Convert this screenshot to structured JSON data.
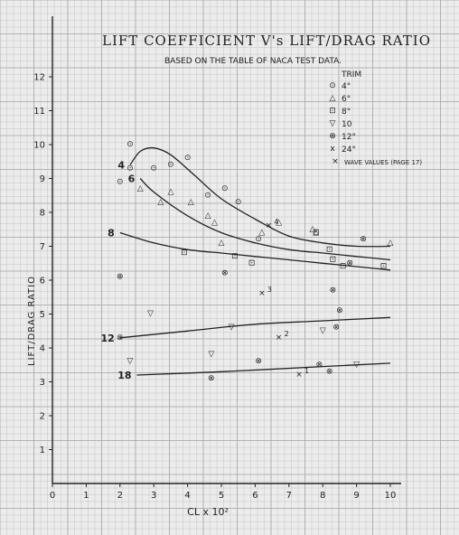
{
  "chart_data": {
    "type": "scatter",
    "title": "LIFT COEFFICIENT V's LIFT/DRAG RATIO",
    "subtitle": "BASED ON THE TABLE OF NACA TEST DATA.",
    "xlabel": "CL x 10²",
    "ylabel": "LIFT/DRAG RATIO",
    "xlim": [
      0,
      10
    ],
    "ylim": [
      0,
      12
    ],
    "x_ticks": [
      "0",
      "1",
      "2",
      "3",
      "4",
      "5",
      "6",
      "7",
      "8",
      "9",
      "10"
    ],
    "y_ticks": [
      "1",
      "2",
      "3",
      "4",
      "5",
      "6",
      "7",
      "8",
      "9",
      "10",
      "11",
      "12"
    ],
    "grid": true,
    "legend": {
      "title": "TRIM",
      "entries": [
        {
          "symbol": "⊙",
          "label": "4°"
        },
        {
          "symbol": "△",
          "label": "6°"
        },
        {
          "symbol": "⊡",
          "label": "8°"
        },
        {
          "symbol": "▽",
          "label": "10"
        },
        {
          "symbol": "⊗",
          "label": "12°"
        },
        {
          "symbol": "x",
          "label": "24°"
        },
        {
          "symbol": "×",
          "label": "WAVE VALUES (PAGE 17)"
        }
      ]
    },
    "series": [
      {
        "name": "4°",
        "symbol": "⊙",
        "points": [
          [
            2.0,
            8.9
          ],
          [
            2.3,
            9.3
          ],
          [
            2.3,
            10.0
          ],
          [
            3.0,
            9.3
          ],
          [
            3.5,
            9.4
          ],
          [
            4.0,
            9.6
          ],
          [
            4.6,
            8.5
          ],
          [
            5.1,
            8.7
          ],
          [
            5.5,
            8.3
          ],
          [
            6.1,
            7.2
          ]
        ]
      },
      {
        "name": "6°",
        "symbol": "△",
        "points": [
          [
            2.6,
            8.7
          ],
          [
            3.2,
            8.3
          ],
          [
            3.5,
            8.6
          ],
          [
            4.1,
            8.3
          ],
          [
            4.6,
            7.9
          ],
          [
            4.8,
            7.7
          ],
          [
            5.0,
            7.1
          ],
          [
            6.2,
            7.4
          ],
          [
            6.7,
            7.7
          ],
          [
            7.7,
            7.5
          ],
          [
            7.8,
            7.4
          ],
          [
            10.0,
            7.1
          ]
        ]
      },
      {
        "name": "8°",
        "symbol": "⊡",
        "points": [
          [
            3.9,
            6.8
          ],
          [
            5.4,
            6.7
          ],
          [
            5.9,
            6.5
          ],
          [
            7.8,
            7.4
          ],
          [
            8.2,
            6.9
          ],
          [
            8.3,
            6.6
          ],
          [
            8.6,
            6.4
          ],
          [
            9.8,
            6.4
          ]
        ]
      },
      {
        "name": "10",
        "symbol": "▽",
        "points": [
          [
            2.3,
            3.6
          ],
          [
            2.9,
            5.0
          ],
          [
            4.7,
            3.8
          ],
          [
            5.3,
            4.6
          ],
          [
            8.0,
            4.5
          ],
          [
            9.0,
            3.5
          ]
        ]
      },
      {
        "name": "12°",
        "symbol": "⊗",
        "points": [
          [
            2.0,
            4.3
          ],
          [
            2.0,
            6.1
          ],
          [
            4.7,
            3.1
          ],
          [
            5.1,
            6.2
          ],
          [
            6.1,
            3.6
          ],
          [
            7.9,
            3.5
          ],
          [
            8.2,
            3.3
          ],
          [
            8.3,
            5.7
          ],
          [
            8.4,
            4.6
          ],
          [
            8.5,
            5.1
          ],
          [
            8.8,
            6.5
          ],
          [
            9.2,
            7.2
          ]
        ]
      },
      {
        "name": "WAVE VALUES (PAGE 17)",
        "symbol": "×",
        "labeled_points": [
          {
            "x": 6.2,
            "y": 5.6,
            "label": "3"
          },
          {
            "x": 6.7,
            "y": 4.3,
            "label": "2"
          },
          {
            "x": 7.3,
            "y": 3.2,
            "label": "1"
          },
          {
            "x": 6.4,
            "y": 7.6,
            "label": "4"
          }
        ]
      }
    ],
    "curves": [
      {
        "name": "4",
        "label": "4",
        "points": [
          [
            2.3,
            9.4
          ],
          [
            2.6,
            9.8
          ],
          [
            3.0,
            9.9
          ],
          [
            3.5,
            9.7
          ],
          [
            4.2,
            9.1
          ],
          [
            5.0,
            8.4
          ],
          [
            6.0,
            7.8
          ],
          [
            7.0,
            7.3
          ],
          [
            8.0,
            7.1
          ],
          [
            9.0,
            7.0
          ],
          [
            10.0,
            7.0
          ]
        ]
      },
      {
        "name": "6",
        "label": "6",
        "points": [
          [
            2.6,
            9.0
          ],
          [
            3.0,
            8.6
          ],
          [
            4.0,
            7.9
          ],
          [
            5.0,
            7.4
          ],
          [
            6.0,
            7.1
          ],
          [
            7.0,
            6.9
          ],
          [
            8.0,
            6.8
          ],
          [
            9.0,
            6.7
          ],
          [
            10.0,
            6.6
          ]
        ]
      },
      {
        "name": "8",
        "label": "8",
        "points": [
          [
            2.0,
            7.4
          ],
          [
            3.0,
            7.1
          ],
          [
            4.0,
            6.9
          ],
          [
            5.0,
            6.8
          ],
          [
            6.0,
            6.7
          ],
          [
            7.0,
            6.6
          ],
          [
            8.0,
            6.5
          ],
          [
            9.0,
            6.4
          ],
          [
            10.0,
            6.3
          ]
        ]
      },
      {
        "name": "12",
        "label": "12",
        "points": [
          [
            2.0,
            4.3
          ],
          [
            4.0,
            4.5
          ],
          [
            6.0,
            4.7
          ],
          [
            8.0,
            4.8
          ],
          [
            10.0,
            4.9
          ]
        ]
      },
      {
        "name": "18",
        "label": "18",
        "points": [
          [
            2.5,
            3.2
          ],
          [
            5.0,
            3.3
          ],
          [
            8.0,
            3.45
          ],
          [
            10.0,
            3.55
          ]
        ]
      }
    ],
    "colors": {
      "ink": "#222222",
      "grid_minor": "#c4c4c4",
      "grid_major": "#a8a8a8",
      "paper": "#ececec"
    }
  }
}
